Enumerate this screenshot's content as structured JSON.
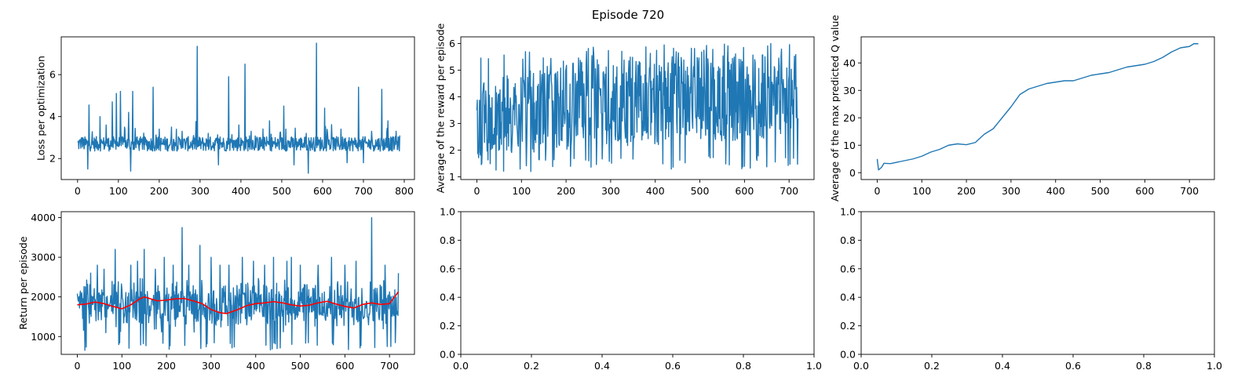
{
  "figure": {
    "title": "Episode 720"
  },
  "chart_data": [
    {
      "id": "loss",
      "type": "line",
      "ylabel": "Loss per optimization",
      "xlim": [
        -40,
        825
      ],
      "ylim": [
        1.0,
        7.8
      ],
      "xticks": [
        0,
        100,
        200,
        300,
        400,
        500,
        600,
        700,
        800
      ],
      "yticks": [
        2,
        4,
        6
      ],
      "grid": false,
      "series": [
        {
          "color": "#1f77b4",
          "n": 790,
          "base": 2.7,
          "noise": 0.35,
          "min": 1.25,
          "spikes": [
            [
              10,
              3.0
            ],
            [
              28,
              4.55
            ],
            [
              55,
              4.0
            ],
            [
              70,
              3.6
            ],
            [
              85,
              4.7
            ],
            [
              95,
              5.1
            ],
            [
              105,
              5.2
            ],
            [
              115,
              3.5
            ],
            [
              125,
              4.2
            ],
            [
              135,
              5.2
            ],
            [
              145,
              3.0
            ],
            [
              160,
              3.0
            ],
            [
              185,
              5.4
            ],
            [
              200,
              3.4
            ],
            [
              230,
              3.5
            ],
            [
              256,
              3.3
            ],
            [
              293,
              7.35
            ],
            [
              320,
              3.2
            ],
            [
              345,
              3.9
            ],
            [
              370,
              5.9
            ],
            [
              395,
              3.6
            ],
            [
              410,
              6.5
            ],
            [
              425,
              3.3
            ],
            [
              445,
              3.0
            ],
            [
              470,
              3.8
            ],
            [
              505,
              4.5
            ],
            [
              510,
              3.4
            ],
            [
              530,
              5.7
            ],
            [
              560,
              3.2
            ],
            [
              585,
              7.5
            ],
            [
              605,
              4.4
            ],
            [
              625,
              3.0
            ],
            [
              645,
              3.4
            ],
            [
              665,
              3.0
            ],
            [
              688,
              5.4
            ],
            [
              700,
              5.1
            ],
            [
              720,
              3.3
            ],
            [
              745,
              5.3
            ],
            [
              760,
              3.8
            ],
            [
              780,
              3.3
            ]
          ],
          "dips": [
            [
              25,
              1.5
            ],
            [
              130,
              1.4
            ],
            [
              345,
              1.7
            ],
            [
              530,
              1.7
            ],
            [
              565,
              1.3
            ],
            [
              660,
              1.8
            ],
            [
              700,
              1.8
            ]
          ],
          "end": 3.1
        }
      ]
    },
    {
      "id": "reward",
      "type": "line",
      "ylabel": "Average of the reward per episode",
      "xlim": [
        -36,
        756
      ],
      "ylim": [
        0.9,
        6.25
      ],
      "xticks": [
        0,
        100,
        200,
        300,
        400,
        500,
        600,
        700
      ],
      "yticks": [
        1,
        2,
        3,
        4,
        5,
        6
      ],
      "grid": false,
      "series": [
        {
          "color": "#1f77b4",
          "n": 721,
          "low": 1.2,
          "high": 6.0,
          "pattern": "alternating",
          "trend_low": [
            [
              0,
              1.8
            ],
            [
              200,
              2.0
            ],
            [
              400,
              2.2
            ],
            [
              720,
              2.5
            ]
          ],
          "trend_high": [
            [
              0,
              4.5
            ],
            [
              200,
              5.4
            ],
            [
              400,
              5.5
            ],
            [
              720,
              5.6
            ]
          ],
          "end": 3.2
        }
      ]
    },
    {
      "id": "q",
      "type": "line",
      "ylabel": "Average of the max predicted Q value",
      "xlim": [
        -36,
        756
      ],
      "ylim": [
        -2.5,
        49.5
      ],
      "xticks": [
        0,
        100,
        200,
        300,
        400,
        500,
        600,
        700
      ],
      "yticks": [
        0,
        10,
        20,
        30,
        40
      ],
      "grid": false,
      "series": [
        {
          "color": "#1f77b4",
          "points": [
            [
              0,
              5.0
            ],
            [
              3,
              1.0
            ],
            [
              10,
              2.0
            ],
            [
              15,
              3.4
            ],
            [
              30,
              3.3
            ],
            [
              50,
              4.0
            ],
            [
              80,
              5.0
            ],
            [
              100,
              6.0
            ],
            [
              120,
              7.5
            ],
            [
              140,
              8.5
            ],
            [
              160,
              10.0
            ],
            [
              180,
              10.5
            ],
            [
              200,
              10.2
            ],
            [
              220,
              11.0
            ],
            [
              240,
              14.0
            ],
            [
              260,
              16.0
            ],
            [
              280,
              20.0
            ],
            [
              300,
              24.0
            ],
            [
              320,
              28.5
            ],
            [
              340,
              30.5
            ],
            [
              360,
              31.5
            ],
            [
              380,
              32.5
            ],
            [
              400,
              33.0
            ],
            [
              420,
              33.5
            ],
            [
              440,
              33.5
            ],
            [
              460,
              34.5
            ],
            [
              480,
              35.5
            ],
            [
              500,
              36.0
            ],
            [
              520,
              36.5
            ],
            [
              540,
              37.5
            ],
            [
              560,
              38.5
            ],
            [
              580,
              39.0
            ],
            [
              600,
              39.5
            ],
            [
              620,
              40.5
            ],
            [
              640,
              42.0
            ],
            [
              660,
              44.0
            ],
            [
              680,
              45.5
            ],
            [
              700,
              46.0
            ],
            [
              710,
              47.0
            ],
            [
              720,
              47.0
            ]
          ]
        }
      ]
    },
    {
      "id": "return",
      "type": "line",
      "ylabel": "Return per episode",
      "xlim": [
        -36,
        756
      ],
      "ylim": [
        550,
        4150
      ],
      "xticks": [
        0,
        100,
        200,
        300,
        400,
        500,
        600,
        700
      ],
      "yticks": [
        1000,
        2000,
        3000,
        4000
      ],
      "grid": false,
      "series": [
        {
          "color": "#1f77b4",
          "n": 721,
          "pattern": "noisy",
          "base": 1800,
          "noise": 450,
          "min": 650,
          "max": 2700,
          "spikes": [
            [
              30,
              2600
            ],
            [
              45,
              2800
            ],
            [
              60,
              2700
            ],
            [
              85,
              3200
            ],
            [
              120,
              2800
            ],
            [
              135,
              2900
            ],
            [
              150,
              3200
            ],
            [
              175,
              2700
            ],
            [
              195,
              3000
            ],
            [
              215,
              2800
            ],
            [
              235,
              3750
            ],
            [
              250,
              2800
            ],
            [
              275,
              3300
            ],
            [
              300,
              3000
            ],
            [
              320,
              2800
            ],
            [
              340,
              2800
            ],
            [
              370,
              3000
            ],
            [
              395,
              2900
            ],
            [
              420,
              2800
            ],
            [
              440,
              3000
            ],
            [
              470,
              2900
            ],
            [
              480,
              3000
            ],
            [
              500,
              2800
            ],
            [
              540,
              2800
            ],
            [
              570,
              3000
            ],
            [
              600,
              2800
            ],
            [
              625,
              2900
            ],
            [
              660,
              4000
            ],
            [
              690,
              2800
            ],
            [
              720,
              2600
            ]
          ],
          "end": 2600
        },
        {
          "color": "#ff0000",
          "points": [
            [
              0,
              1800
            ],
            [
              20,
              1820
            ],
            [
              40,
              1870
            ],
            [
              60,
              1830
            ],
            [
              80,
              1760
            ],
            [
              100,
              1700
            ],
            [
              120,
              1800
            ],
            [
              140,
              1950
            ],
            [
              150,
              2000
            ],
            [
              165,
              1950
            ],
            [
              180,
              1900
            ],
            [
              200,
              1920
            ],
            [
              220,
              1950
            ],
            [
              240,
              1960
            ],
            [
              260,
              1900
            ],
            [
              280,
              1830
            ],
            [
              300,
              1680
            ],
            [
              320,
              1600
            ],
            [
              335,
              1580
            ],
            [
              360,
              1680
            ],
            [
              380,
              1780
            ],
            [
              400,
              1830
            ],
            [
              420,
              1850
            ],
            [
              440,
              1880
            ],
            [
              460,
              1850
            ],
            [
              480,
              1800
            ],
            [
              500,
              1770
            ],
            [
              520,
              1790
            ],
            [
              540,
              1850
            ],
            [
              560,
              1890
            ],
            [
              580,
              1820
            ],
            [
              600,
              1760
            ],
            [
              620,
              1720
            ],
            [
              640,
              1810
            ],
            [
              660,
              1850
            ],
            [
              680,
              1810
            ],
            [
              700,
              1830
            ],
            [
              720,
              2130
            ]
          ]
        }
      ]
    },
    {
      "id": "empty1",
      "type": "line",
      "xlim": [
        0,
        1
      ],
      "ylim": [
        0,
        1
      ],
      "xticks": [
        0.0,
        0.2,
        0.4,
        0.6,
        0.8,
        1.0
      ],
      "yticks": [
        0.0,
        0.2,
        0.4,
        0.6,
        0.8,
        1.0
      ],
      "tick_format": "0.0",
      "series": []
    },
    {
      "id": "empty2",
      "type": "line",
      "xlim": [
        0,
        1
      ],
      "ylim": [
        0,
        1
      ],
      "xticks": [
        0.0,
        0.2,
        0.4,
        0.6,
        0.8,
        1.0
      ],
      "yticks": [
        0.0,
        0.2,
        0.4,
        0.6,
        0.8,
        1.0
      ],
      "tick_format": "0.0",
      "series": []
    }
  ]
}
